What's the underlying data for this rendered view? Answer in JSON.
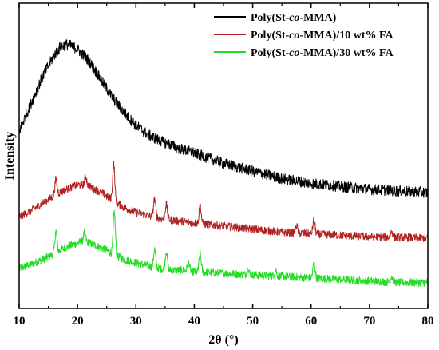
{
  "chart_data": {
    "type": "line",
    "xlabel": "2θ (°)",
    "ylabel": "Intensity",
    "xlim": [
      10,
      80
    ],
    "xticks": [
      10,
      20,
      30,
      40,
      50,
      60,
      70,
      80
    ],
    "ylim": [
      0,
      100
    ],
    "grid": false,
    "legend_position": "top-right",
    "series": [
      {
        "name": "Poly(St-co-MMA)",
        "color": "#000000",
        "noise": 1.8,
        "x": [
          10,
          12,
          14,
          16,
          17,
          18,
          19,
          20,
          22,
          24,
          26,
          28,
          30,
          32,
          34,
          36,
          38,
          40,
          42,
          45,
          48,
          50,
          55,
          60,
          65,
          70,
          75,
          80
        ],
        "y": [
          58,
          67,
          76,
          83,
          85.5,
          86.5,
          86,
          85,
          81,
          75,
          69,
          64,
          60,
          57,
          55,
          53.5,
          52,
          51,
          49.5,
          47.5,
          46,
          45,
          42.5,
          41,
          40,
          39,
          38.5,
          38
        ]
      },
      {
        "name": "Poly(St-co-MMA)/10 wt% FA",
        "color": "#b22222",
        "noise": 1.3,
        "x": [
          10,
          12,
          14,
          16,
          18,
          20,
          21,
          22,
          24,
          26,
          28,
          30,
          32,
          34,
          36,
          38,
          40,
          45,
          50,
          55,
          60,
          65,
          70,
          75,
          80
        ],
        "y": [
          30,
          32,
          34.5,
          37,
          39,
          40.5,
          40.5,
          40,
          38,
          35.5,
          33,
          31.5,
          30.5,
          29.5,
          29,
          28.5,
          28,
          27,
          26,
          25,
          24.5,
          24,
          23.5,
          23.3,
          23
        ],
        "peaks": [
          {
            "x": 16.3,
            "h": 5
          },
          {
            "x": 21.4,
            "h": 3
          },
          {
            "x": 26.2,
            "h": 12
          },
          {
            "x": 33.2,
            "h": 6
          },
          {
            "x": 35.2,
            "h": 5
          },
          {
            "x": 41,
            "h": 6
          },
          {
            "x": 57.5,
            "h": 2.5
          },
          {
            "x": 60.5,
            "h": 4.5
          },
          {
            "x": 73.8,
            "h": 2
          }
        ]
      },
      {
        "name": "Poly(St-co-MMA)/30 wt% FA",
        "color": "#22dd22",
        "noise": 1.3,
        "x": [
          10,
          12,
          14,
          16,
          18,
          20,
          21,
          22,
          24,
          26,
          28,
          30,
          32,
          34,
          36,
          38,
          40,
          45,
          50,
          55,
          60,
          65,
          70,
          75,
          80
        ],
        "y": [
          13,
          14.5,
          16,
          18,
          20,
          21.5,
          22,
          21.5,
          20,
          18,
          16,
          15,
          14,
          13,
          12.5,
          12.5,
          12,
          11.5,
          11,
          10.5,
          10,
          9.5,
          9,
          8.5,
          8.5
        ],
        "peaks": [
          {
            "x": 16.3,
            "h": 7
          },
          {
            "x": 21.2,
            "h": 3
          },
          {
            "x": 26.3,
            "h": 14
          },
          {
            "x": 33.2,
            "h": 6
          },
          {
            "x": 35.2,
            "h": 6
          },
          {
            "x": 39,
            "h": 3
          },
          {
            "x": 41,
            "h": 6
          },
          {
            "x": 49.2,
            "h": 2
          },
          {
            "x": 53.9,
            "h": 2
          },
          {
            "x": 60.5,
            "h": 5
          },
          {
            "x": 73.8,
            "h": 2
          }
        ]
      }
    ]
  }
}
